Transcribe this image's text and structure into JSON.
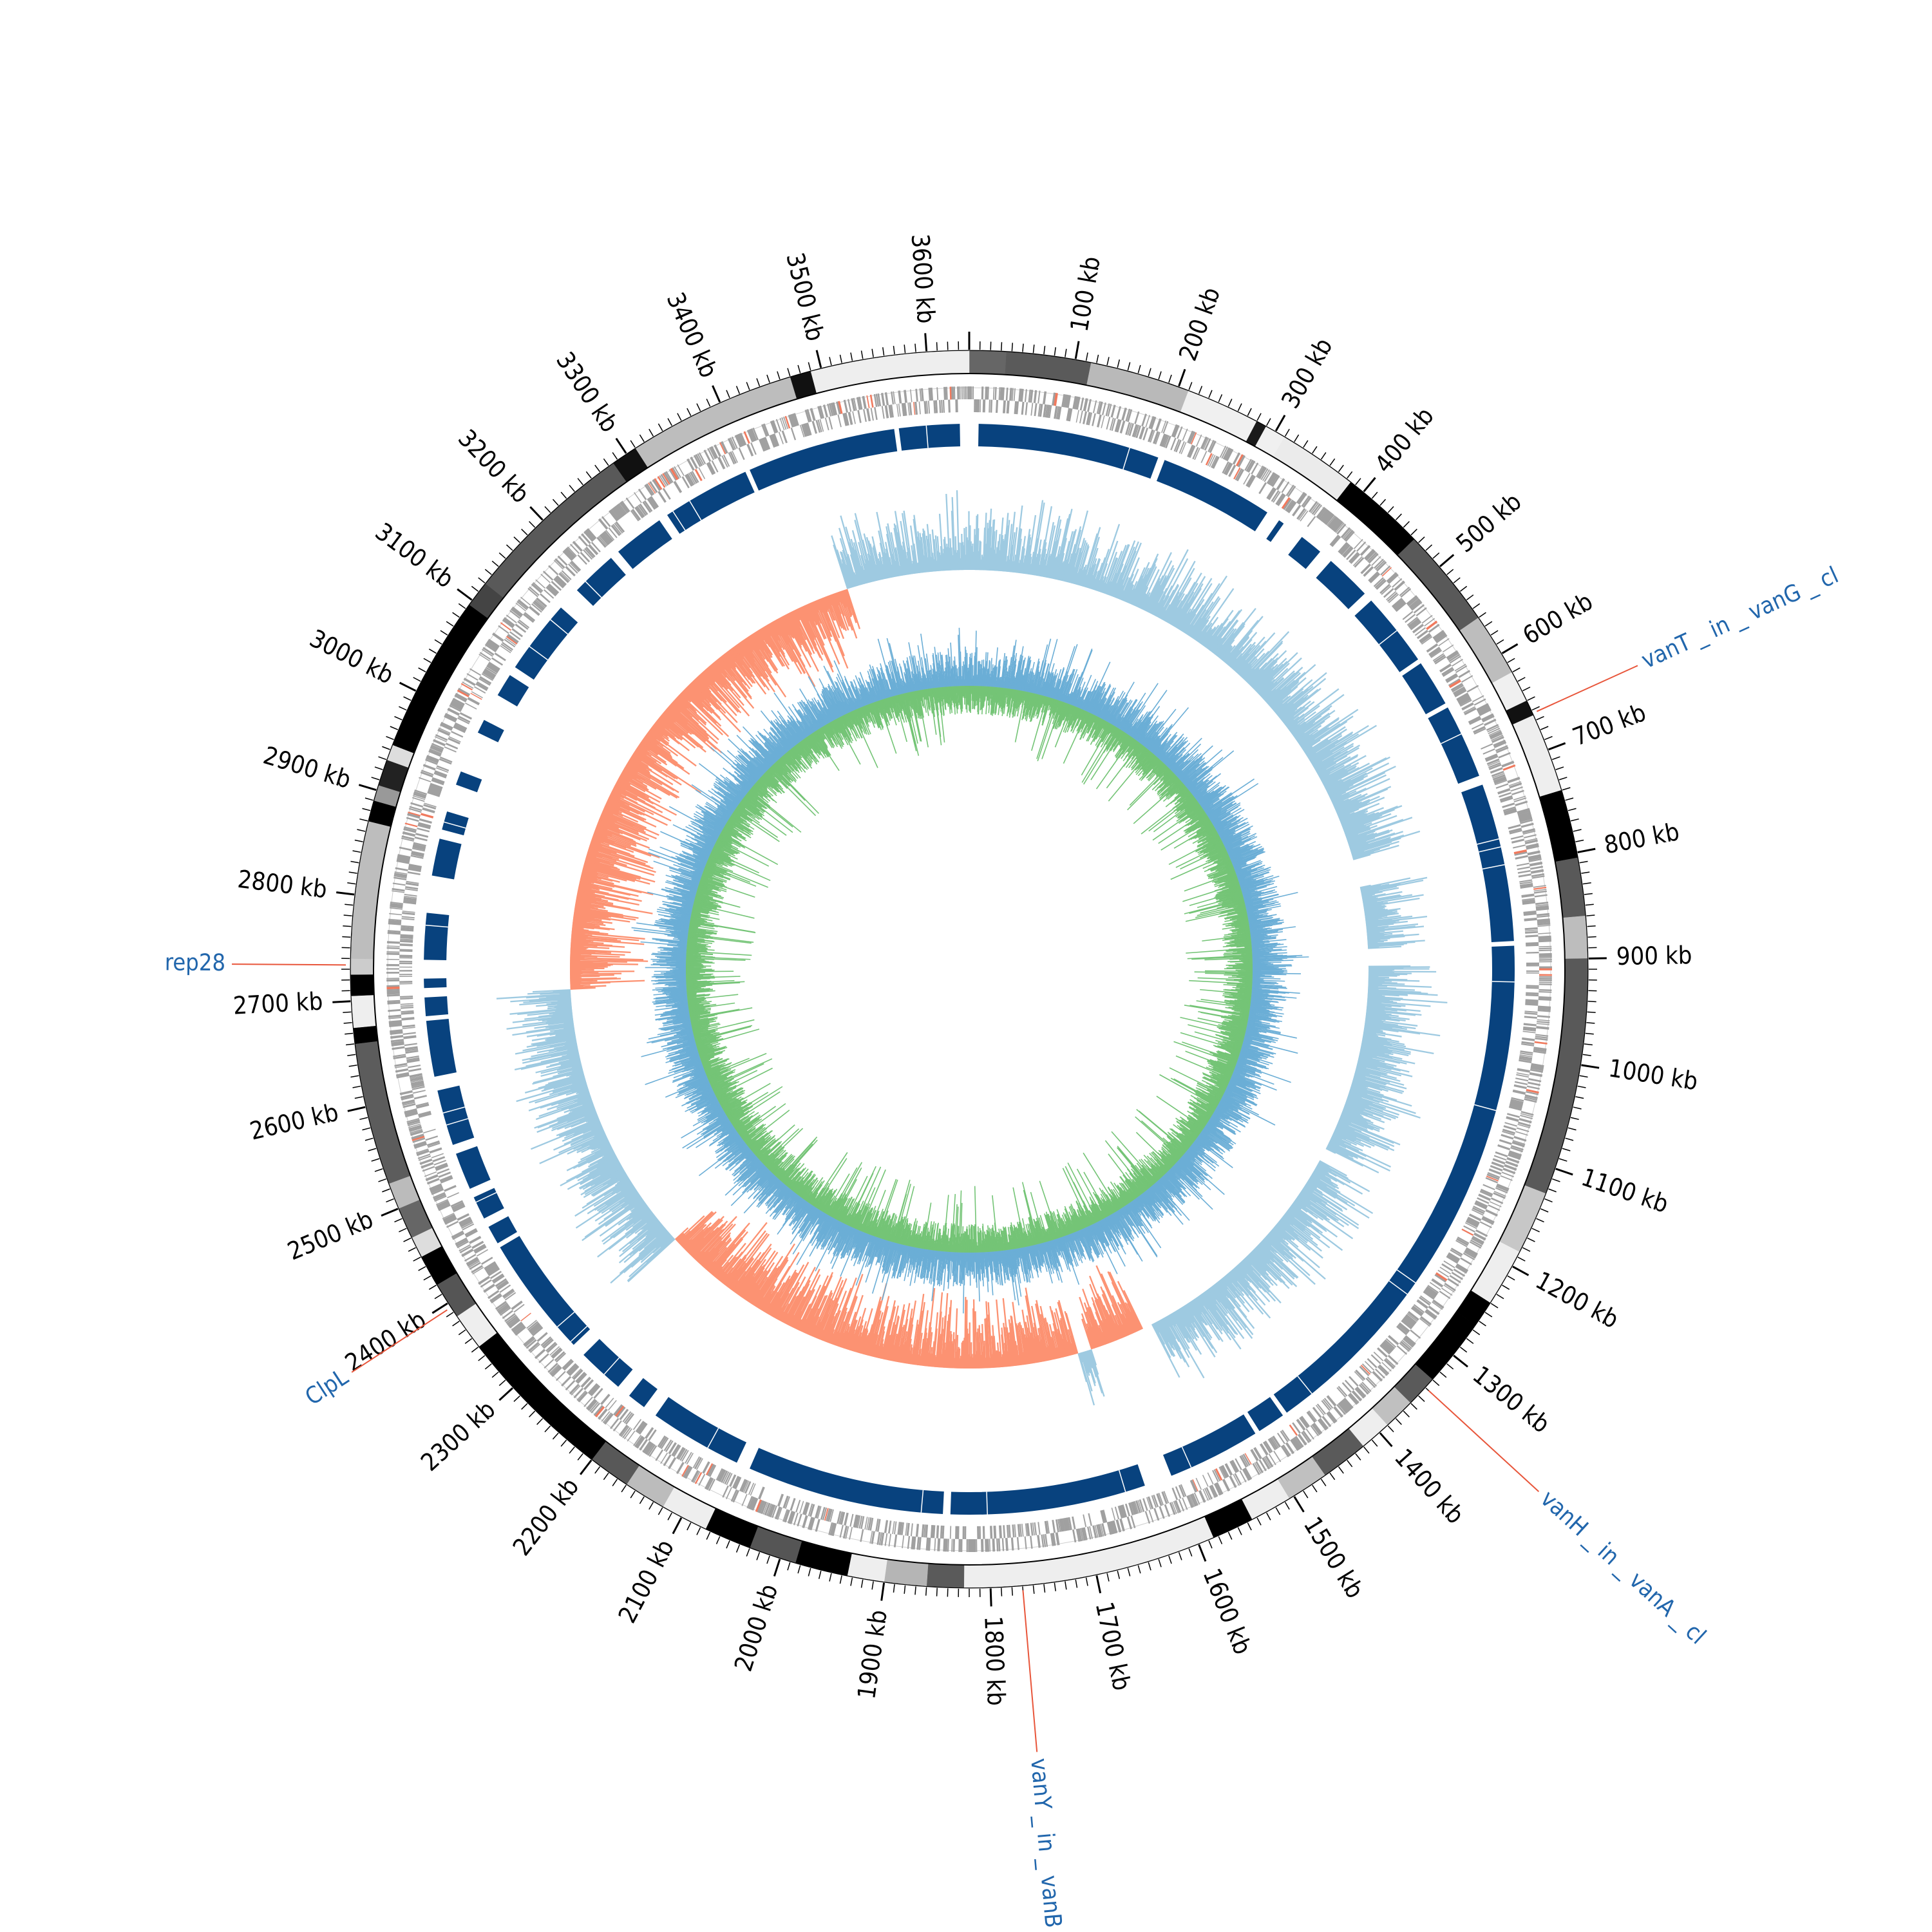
{
  "genome_length_kb": 3640,
  "tick_labels": [
    {
      "kb": 100,
      "label": "100 kb"
    },
    {
      "kb": 200,
      "label": "200 kb"
    },
    {
      "kb": 300,
      "label": "300 kb"
    },
    {
      "kb": 400,
      "label": "400 kb"
    },
    {
      "kb": 500,
      "label": "500 kb"
    },
    {
      "kb": 600,
      "label": "600 kb"
    },
    {
      "kb": 700,
      "label": "700 kb"
    },
    {
      "kb": 800,
      "label": "800 kb"
    },
    {
      "kb": 900,
      "label": "900 kb"
    },
    {
      "kb": 1000,
      "label": "1000 kb"
    },
    {
      "kb": 1100,
      "label": "1100 kb"
    },
    {
      "kb": 1200,
      "label": "1200 kb"
    },
    {
      "kb": 1300,
      "label": "1300 kb"
    },
    {
      "kb": 1400,
      "label": "1400 kb"
    },
    {
      "kb": 1500,
      "label": "1500 kb"
    },
    {
      "kb": 1600,
      "label": "1600 kb"
    },
    {
      "kb": 1700,
      "label": "1700 kb"
    },
    {
      "kb": 1800,
      "label": "1800 kb"
    },
    {
      "kb": 1900,
      "label": "1900 kb"
    },
    {
      "kb": 2000,
      "label": "2000 kb"
    },
    {
      "kb": 2100,
      "label": "2100 kb"
    },
    {
      "kb": 2200,
      "label": "2200 kb"
    },
    {
      "kb": 2300,
      "label": "2300 kb"
    },
    {
      "kb": 2400,
      "label": "2400 kb"
    },
    {
      "kb": 2500,
      "label": "2500 kb"
    },
    {
      "kb": 2600,
      "label": "2600 kb"
    },
    {
      "kb": 2700,
      "label": "2700 kb"
    },
    {
      "kb": 2800,
      "label": "2800 kb"
    },
    {
      "kb": 2900,
      "label": "2900 kb"
    },
    {
      "kb": 3000,
      "label": "3000 kb"
    },
    {
      "kb": 3100,
      "label": "3100 kb"
    },
    {
      "kb": 3200,
      "label": "3200 kb"
    },
    {
      "kb": 3300,
      "label": "3300 kb"
    },
    {
      "kb": 3400,
      "label": "3400 kb"
    },
    {
      "kb": 3500,
      "label": "3500 kb"
    },
    {
      "kb": 3600,
      "label": "3600 kb"
    }
  ],
  "gene_labels": [
    {
      "name": "vanT _ in _ vanG _ cl",
      "kb": 663
    },
    {
      "name": "rep28",
      "kb": 2734
    },
    {
      "name": "ClpL",
      "kb": 2395
    },
    {
      "name": "vanH _ in _ vanA _ cl",
      "kb": 1340
    },
    {
      "name": "vanY _ in _ vanB _ cl",
      "kb": 1770
    }
  ],
  "contig_blocks_kb": [
    [
      0,
      35,
      "#666666"
    ],
    [
      35,
      115,
      "#5a5a5a"
    ],
    [
      115,
      210,
      "#b9b9b9"
    ],
    [
      210,
      280,
      "#f0f0f0"
    ],
    [
      280,
      290,
      "#1a1a1a"
    ],
    [
      290,
      310,
      "#f0f0f0"
    ],
    [
      310,
      385,
      "#ebebeb"
    ],
    [
      385,
      465,
      "#000000"
    ],
    [
      465,
      560,
      "#595959"
    ],
    [
      560,
      620,
      "#bdbdbd"
    ],
    [
      620,
      650,
      "#f0f0f0"
    ],
    [
      650,
      665,
      "#111111"
    ],
    [
      665,
      740,
      "#eeeeee"
    ],
    [
      740,
      805,
      "#000000"
    ],
    [
      805,
      860,
      "#595959"
    ],
    [
      860,
      900,
      "#bdbdbd"
    ],
    [
      900,
      1125,
      "#595959"
    ],
    [
      1125,
      1185,
      "#c7c7c7"
    ],
    [
      1185,
      1240,
      "#eeeeee"
    ],
    [
      1240,
      1265,
      "#000000"
    ],
    [
      1265,
      1330,
      "#000000"
    ],
    [
      1330,
      1360,
      "#5a5a5a"
    ],
    [
      1360,
      1390,
      "#c0c0c0"
    ],
    [
      1390,
      1420,
      "#eeeeee"
    ],
    [
      1420,
      1465,
      "#5a5a5a"
    ],
    [
      1465,
      1505,
      "#c0c0c0"
    ],
    [
      1505,
      1545,
      "#eeeeee"
    ],
    [
      1545,
      1585,
      "#000000"
    ],
    [
      1585,
      1825,
      "#eeeeee"
    ],
    [
      1825,
      1860,
      "#5a5a5a"
    ],
    [
      1860,
      1900,
      "#b5b5b5"
    ],
    [
      1900,
      1935,
      "#eeeeee"
    ],
    [
      1935,
      1985,
      "#000000"
    ],
    [
      1985,
      2030,
      "#555555"
    ],
    [
      2030,
      2075,
      "#000000"
    ],
    [
      2075,
      2120,
      "#eeeeee"
    ],
    [
      2120,
      2160,
      "#bcbcbc"
    ],
    [
      2160,
      2200,
      "#585858"
    ],
    [
      2200,
      2350,
      "#000000"
    ],
    [
      2350,
      2385,
      "#eeeeee"
    ],
    [
      2385,
      2420,
      "#555555"
    ],
    [
      2420,
      2450,
      "#000000"
    ],
    [
      2450,
      2470,
      "#dddddd"
    ],
    [
      2470,
      2500,
      "#666666"
    ],
    [
      2500,
      2525,
      "#bbbbbb"
    ],
    [
      2525,
      2660,
      "#5c5c5c"
    ],
    [
      2660,
      2675,
      "#000000"
    ],
    [
      2675,
      2705,
      "#eeeeee"
    ],
    [
      2705,
      2725,
      "#000000"
    ],
    [
      2725,
      2740,
      "#cccccc"
    ],
    [
      2740,
      2870,
      "#bdbdbd"
    ],
    [
      2870,
      2890,
      "#000000"
    ],
    [
      2890,
      2905,
      "#999999"
    ],
    [
      2905,
      2930,
      "#222222"
    ],
    [
      2930,
      2945,
      "#dddddd"
    ],
    [
      2945,
      3095,
      "#000000"
    ],
    [
      3095,
      3120,
      "#444444"
    ],
    [
      3120,
      3285,
      "#595959"
    ],
    [
      3285,
      3310,
      "#111111"
    ],
    [
      3310,
      3470,
      "#bdbdbd"
    ],
    [
      3470,
      3490,
      "#111111"
    ],
    [
      3490,
      3640,
      "#eeeeee"
    ]
  ],
  "colors": {
    "contig_stroke": "#000000",
    "cds": "#a0a0a0",
    "cds_highlight": "#f07a5e",
    "blast_hits": "#08427e",
    "gc_skew_pos": "#9ecae1",
    "gc_skew_neg": "#fc9272",
    "gc_content_pos": "#6baed6",
    "gc_content_neg": "#74c476",
    "label_line": "#e8553a",
    "label_text": "#2166ac"
  }
}
